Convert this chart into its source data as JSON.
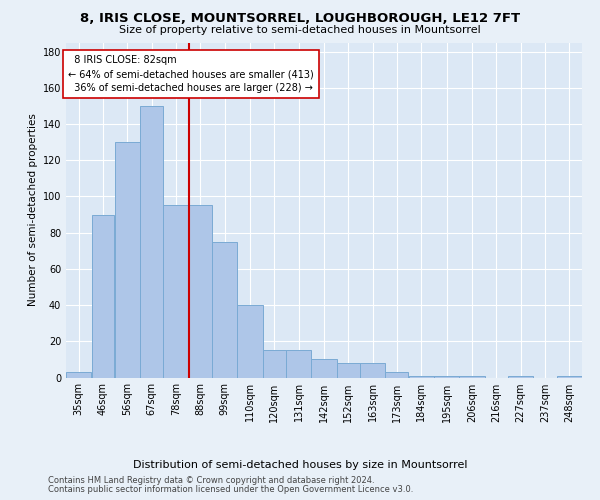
{
  "title": "8, IRIS CLOSE, MOUNTSORREL, LOUGHBOROUGH, LE12 7FT",
  "subtitle": "Size of property relative to semi-detached houses in Mountsorrel",
  "xlabel": "Distribution of semi-detached houses by size in Mountsorrel",
  "ylabel": "Number of semi-detached properties",
  "footer_line1": "Contains HM Land Registry data © Crown copyright and database right 2024.",
  "footer_line2": "Contains public sector information licensed under the Open Government Licence v3.0.",
  "property_label": "8 IRIS CLOSE: 82sqm",
  "pct_smaller": 64,
  "count_smaller": 413,
  "pct_larger": 36,
  "count_larger": 228,
  "bar_categories": [
    "35sqm",
    "46sqm",
    "56sqm",
    "67sqm",
    "78sqm",
    "88sqm",
    "99sqm",
    "110sqm",
    "120sqm",
    "131sqm",
    "142sqm",
    "152sqm",
    "163sqm",
    "173sqm",
    "184sqm",
    "195sqm",
    "206sqm",
    "216sqm",
    "227sqm",
    "237sqm",
    "248sqm"
  ],
  "bar_values": [
    3,
    90,
    130,
    150,
    95,
    95,
    75,
    40,
    15,
    15,
    10,
    8,
    8,
    3,
    1,
    1,
    1,
    0,
    1,
    0,
    1
  ],
  "bar_edges": [
    30,
    41,
    51,
    62,
    72,
    83,
    93,
    104,
    115,
    125,
    136,
    147,
    157,
    168,
    178,
    189,
    200,
    211,
    221,
    232,
    242,
    253
  ],
  "bar_color": "#aec6e8",
  "bar_edgecolor": "#7aaad4",
  "vline_x": 83,
  "vline_color": "#cc0000",
  "ylim": [
    0,
    185
  ],
  "yticks": [
    0,
    20,
    40,
    60,
    80,
    100,
    120,
    140,
    160,
    180
  ],
  "annotation_box_color": "#ffffff",
  "annotation_box_edgecolor": "#cc0000",
  "bg_color": "#e8f0f8",
  "plot_bg_color": "#dce8f5",
  "grid_color": "#ffffff",
  "title_fontsize": 9.5,
  "subtitle_fontsize": 8,
  "tick_fontsize": 7,
  "ylabel_fontsize": 7.5
}
